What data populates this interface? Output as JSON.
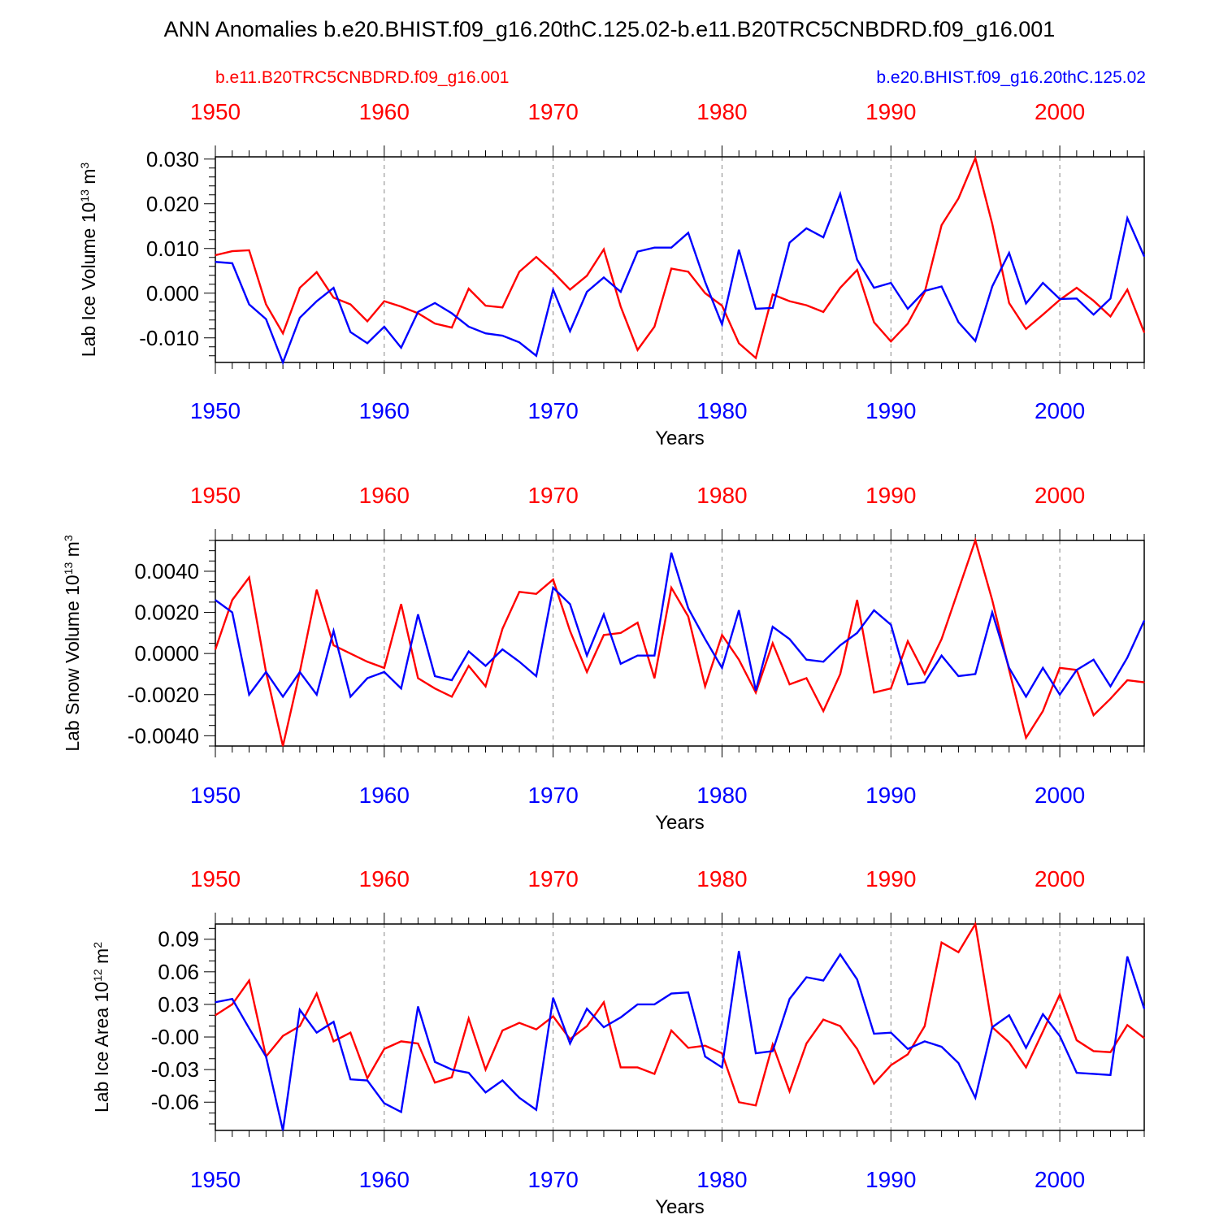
{
  "title": "ANN Anomalies b.e20.BHIST.f09_g16.20thC.125.02-b.e11.B20TRC5CNBDRD.f09_g16.001",
  "legend": {
    "red_label": "b.e11.B20TRC5CNBDRD.f09_g16.001",
    "blue_label": "b.e20.BHIST.f09_g16.20thC.125.02"
  },
  "colors": {
    "red": "#ff0000",
    "blue": "#0000ff",
    "axis": "#000000",
    "grid": "#888888"
  },
  "xlabel": "Years",
  "chart_data": [
    {
      "type": "line",
      "ylabel_main": "Lab Ice Volume 10",
      "ylabel_exp": "13",
      "ylabel_unit": " m",
      "ylabel_unit_exp": "3",
      "x_start": 1950,
      "xlim": [
        1950,
        2005
      ],
      "ylim": [
        -0.0155,
        0.0305
      ],
      "yticks": [
        -0.01,
        0.0,
        0.01,
        0.02,
        0.03
      ],
      "ytick_labels": [
        "-0.010",
        "0.000",
        "0.010",
        "0.020",
        "0.030"
      ],
      "yminor_step": 0.002,
      "xticks": [
        1950,
        1960,
        1970,
        1980,
        1990,
        2000
      ],
      "xtick_labels": [
        "1950",
        "1960",
        "1970",
        "1980",
        "1990",
        "2000"
      ],
      "series": [
        {
          "name": "b.e11.B20TRC5CNBDRD.f09_g16.001",
          "color": "red",
          "values": [
            0.0085,
            0.0094,
            0.0096,
            -0.0025,
            -0.009,
            0.0012,
            0.0047,
            -0.001,
            -0.0025,
            -0.0063,
            -0.0018,
            -0.003,
            -0.0045,
            -0.0068,
            -0.0077,
            0.001,
            -0.0028,
            -0.0032,
            0.0048,
            0.0081,
            0.0047,
            0.0008,
            0.0039,
            0.0098,
            -0.003,
            -0.0127,
            -0.0075,
            0.0055,
            0.0048,
            0.0,
            -0.0028,
            -0.0112,
            -0.0145,
            -0.0003,
            -0.0018,
            -0.0027,
            -0.0042,
            0.0012,
            0.0052,
            -0.0065,
            -0.0108,
            -0.0068,
            0.0002,
            0.0152,
            0.0212,
            0.0302,
            0.0155,
            -0.0022,
            -0.008,
            -0.0048,
            -0.0015,
            0.0012,
            -0.0017,
            -0.0052,
            0.0008,
            -0.0088
          ]
        },
        {
          "name": "b.e20.BHIST.f09_g16.20thC.125.02",
          "color": "blue",
          "values": [
            0.007,
            0.0067,
            -0.0025,
            -0.0058,
            -0.0155,
            -0.0055,
            -0.0018,
            0.0012,
            -0.0087,
            -0.0112,
            -0.0075,
            -0.0122,
            -0.0042,
            -0.0022,
            -0.0045,
            -0.0075,
            -0.009,
            -0.0095,
            -0.011,
            -0.014,
            0.0008,
            -0.0085,
            0.0003,
            0.0035,
            0.0003,
            0.0093,
            0.0102,
            0.0102,
            0.0135,
            0.0025,
            -0.007,
            0.0097,
            -0.0035,
            -0.0033,
            0.0113,
            0.0145,
            0.0125,
            0.0222,
            0.0075,
            0.0012,
            0.0023,
            -0.0035,
            0.0005,
            0.0015,
            -0.0065,
            -0.0107,
            0.0015,
            0.009,
            -0.0023,
            0.0023,
            -0.0013,
            -0.0012,
            -0.0048,
            -0.0012,
            0.0168,
            0.0082
          ]
        }
      ]
    },
    {
      "type": "line",
      "ylabel_main": "Lab Snow Volume 10",
      "ylabel_exp": "13",
      "ylabel_unit": " m",
      "ylabel_unit_exp": "3",
      "x_start": 1950,
      "xlim": [
        1950,
        2005
      ],
      "ylim": [
        -0.0045,
        0.0055
      ],
      "yticks": [
        -0.004,
        -0.002,
        0.0,
        0.002,
        0.004
      ],
      "ytick_labels": [
        "-0.0040",
        "-0.0020",
        "0.0000",
        "0.0020",
        "0.0040"
      ],
      "yminor_step": 0.0005,
      "xticks": [
        1950,
        1960,
        1970,
        1980,
        1990,
        2000
      ],
      "xtick_labels": [
        "1950",
        "1960",
        "1970",
        "1980",
        "1990",
        "2000"
      ],
      "series": [
        {
          "name": "b.e11.B20TRC5CNBDRD.f09_g16.001",
          "color": "red",
          "values": [
            0.0002,
            0.0026,
            0.0037,
            -0.0009,
            -0.0045,
            -0.0009,
            0.0031,
            0.0004,
            0.0,
            -0.0004,
            -0.0007,
            0.0024,
            -0.0012,
            -0.0017,
            -0.0021,
            -0.0006,
            -0.0016,
            0.0012,
            0.003,
            0.0029,
            0.0036,
            0.0011,
            -0.0009,
            0.0009,
            0.001,
            0.0015,
            -0.0012,
            0.0032,
            0.0018,
            -0.0016,
            0.0009,
            -0.0003,
            -0.0019,
            0.0005,
            -0.0015,
            -0.0012,
            -0.0028,
            -0.001,
            0.0026,
            -0.0019,
            -0.0017,
            0.0006,
            -0.001,
            0.0007,
            0.0031,
            0.0055,
            0.0026,
            -0.0008,
            -0.0041,
            -0.0028,
            -0.0007,
            -0.0008,
            -0.003,
            -0.0022,
            -0.0013,
            -0.0014
          ]
        },
        {
          "name": "b.e20.BHIST.f09_g16.20thC.125.02",
          "color": "blue",
          "values": [
            0.0026,
            0.002,
            -0.002,
            -0.0009,
            -0.0021,
            -0.0009,
            -0.002,
            0.0011,
            -0.0021,
            -0.0012,
            -0.0009,
            -0.0017,
            0.0019,
            -0.0011,
            -0.0013,
            0.0001,
            -0.0006,
            0.0002,
            -0.0004,
            -0.0011,
            0.0032,
            0.0024,
            -0.0001,
            0.0019,
            -0.0005,
            -0.0001,
            -0.0001,
            0.0049,
            0.0022,
            0.0007,
            -0.0007,
            0.0021,
            -0.0018,
            0.0013,
            0.0007,
            -0.0003,
            -0.0004,
            0.0004,
            0.001,
            0.0021,
            0.0014,
            -0.0015,
            -0.0014,
            -0.0001,
            -0.0011,
            -0.001,
            0.002,
            -0.0007,
            -0.0021,
            -0.0007,
            -0.002,
            -0.0008,
            -0.0003,
            -0.0016,
            -0.0002,
            0.0016
          ]
        }
      ]
    },
    {
      "type": "line",
      "ylabel_main": "Lab Ice Area 10",
      "ylabel_exp": "12",
      "ylabel_unit": " m",
      "ylabel_unit_exp": "2",
      "x_start": 1950,
      "xlim": [
        1950,
        2005
      ],
      "ylim": [
        -0.086,
        0.104
      ],
      "yticks": [
        -0.06,
        -0.03,
        0.0,
        0.03,
        0.06,
        0.09
      ],
      "ytick_labels": [
        "-0.06",
        "-0.03",
        "-0.00",
        "0.03",
        "0.06",
        "0.09"
      ],
      "yminor_step": 0.01,
      "xticks": [
        1950,
        1960,
        1970,
        1980,
        1990,
        2000
      ],
      "xtick_labels": [
        "1950",
        "1960",
        "1970",
        "1980",
        "1990",
        "2000"
      ],
      "series": [
        {
          "name": "b.e11.B20TRC5CNBDRD.f09_g16.001",
          "color": "red",
          "values": [
            0.02,
            0.03,
            0.052,
            -0.018,
            0.001,
            0.01,
            0.04,
            -0.004,
            0.004,
            -0.038,
            -0.011,
            -0.004,
            -0.006,
            -0.042,
            -0.037,
            0.017,
            -0.03,
            0.006,
            0.013,
            0.007,
            0.019,
            -0.002,
            0.01,
            0.032,
            -0.028,
            -0.028,
            -0.034,
            0.006,
            -0.01,
            -0.008,
            -0.015,
            -0.06,
            -0.063,
            -0.007,
            -0.05,
            -0.006,
            0.016,
            0.01,
            -0.011,
            -0.043,
            -0.026,
            -0.016,
            0.01,
            0.087,
            0.078,
            0.104,
            0.009,
            -0.005,
            -0.028,
            0.005,
            0.039,
            -0.003,
            -0.013,
            -0.014,
            0.011,
            -0.001
          ]
        },
        {
          "name": "b.e20.BHIST.f09_g16.20thC.125.02",
          "color": "blue",
          "values": [
            0.032,
            0.035,
            0.008,
            -0.018,
            -0.086,
            0.025,
            0.004,
            0.014,
            -0.039,
            -0.04,
            -0.061,
            -0.069,
            0.028,
            -0.023,
            -0.03,
            -0.033,
            -0.051,
            -0.04,
            -0.056,
            -0.067,
            0.036,
            -0.006,
            0.026,
            0.009,
            0.018,
            0.03,
            0.03,
            0.04,
            0.041,
            -0.018,
            -0.028,
            0.079,
            -0.015,
            -0.013,
            0.035,
            0.055,
            0.052,
            0.076,
            0.053,
            0.003,
            0.004,
            -0.011,
            -0.004,
            -0.009,
            -0.024,
            -0.056,
            0.009,
            0.02,
            -0.01,
            0.021,
            0.001,
            -0.033,
            -0.034,
            -0.035,
            0.074,
            0.026
          ]
        }
      ]
    }
  ]
}
